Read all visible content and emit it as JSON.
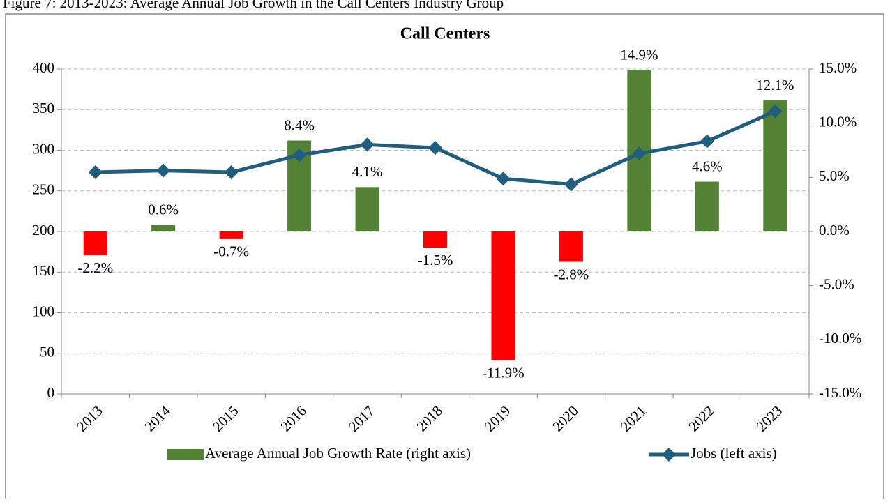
{
  "chart_data": {
    "type": "bar_line",
    "caption": "Figure 7: 2013-2023: Average Annual Job Growth in the Call Centers Industry Group",
    "title": "Call Centers",
    "categories": [
      "2013",
      "2014",
      "2015",
      "2016",
      "2017",
      "2018",
      "2019",
      "2020",
      "2021",
      "2022",
      "2023"
    ],
    "series": [
      {
        "name": "Average Annual Job Growth Rate (right axis)",
        "type": "bar",
        "axis": "y2",
        "color": "#548235",
        "negative_color": "#ff0000",
        "values": [
          -2.2,
          0.6,
          -0.7,
          8.4,
          4.1,
          -1.5,
          -11.9,
          -2.8,
          14.9,
          4.6,
          12.1
        ],
        "value_labels": [
          "-2.2%",
          "0.6%",
          "-0.7%",
          "8.4%",
          "4.1%",
          "-1.5%",
          "-11.9%",
          "-2.8%",
          "14.9%",
          "4.6%",
          "12.1%"
        ]
      },
      {
        "name": "Jobs (left axis)",
        "type": "line",
        "axis": "y",
        "color": "#1f5e7e",
        "values": [
          273,
          275,
          273,
          294,
          307,
          303,
          265,
          258,
          296,
          311,
          348
        ]
      }
    ],
    "ylim": [
      0,
      400
    ],
    "yticks": [
      0,
      50,
      100,
      150,
      200,
      250,
      300,
      350,
      400
    ],
    "y2lim": [
      -15,
      15
    ],
    "y2ticks": [
      {
        "value": -15,
        "label": "-15.0%"
      },
      {
        "value": -10,
        "label": "-10.0%"
      },
      {
        "value": -5,
        "label": "-5.0%"
      },
      {
        "value": 0,
        "label": "0.0%"
      },
      {
        "value": 5,
        "label": "5.0%"
      },
      {
        "value": 10,
        "label": "10.0%"
      },
      {
        "value": 15,
        "label": "15.0%"
      }
    ],
    "grid": true,
    "legend": "bottom"
  }
}
